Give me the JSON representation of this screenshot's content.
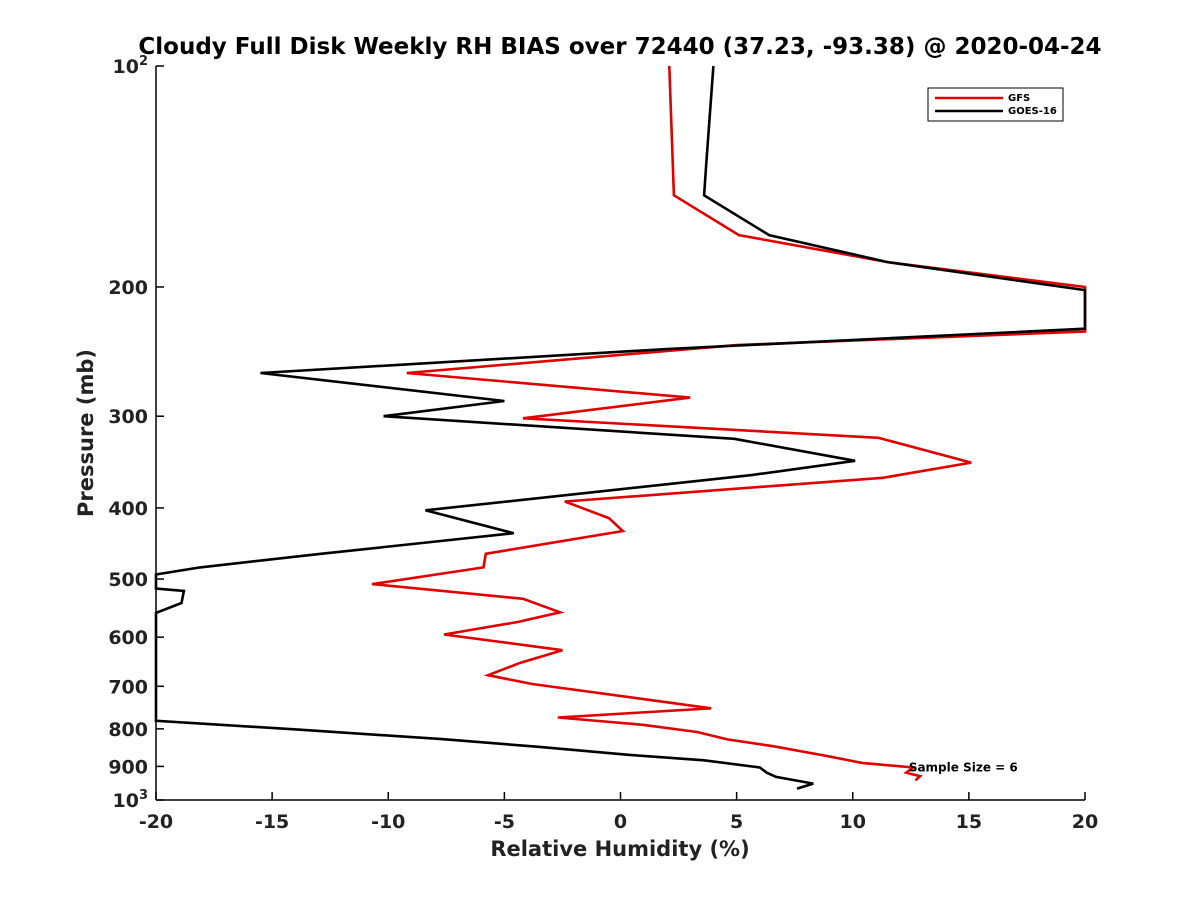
{
  "chart_data": {
    "type": "line",
    "title": "Cloudy Full Disk Weekly RH BIAS over 72440 (37.23, -93.38) @ 2020-04-24",
    "xlabel": "Relative Humidity (%)",
    "ylabel": "Pressure (mb)",
    "xlim": [
      -20,
      20
    ],
    "ylim": [
      100,
      1000
    ],
    "y_scale": "log",
    "y_reversed": true,
    "grid": false,
    "legend_position": "top-right",
    "x_ticks": [
      "-20",
      "-15",
      "-10",
      "-5",
      "0",
      "5",
      "10",
      "15",
      "20"
    ],
    "y_ticks": [
      {
        "value": 100,
        "base": "10",
        "exp": "2"
      },
      {
        "value": 200,
        "label": "200"
      },
      {
        "value": 300,
        "label": "300"
      },
      {
        "value": 400,
        "label": "400"
      },
      {
        "value": 500,
        "label": "500"
      },
      {
        "value": 600,
        "label": "600"
      },
      {
        "value": 700,
        "label": "700"
      },
      {
        "value": 800,
        "label": "800"
      },
      {
        "value": 900,
        "label": "900"
      },
      {
        "value": 1000,
        "base": "10",
        "exp": "3"
      }
    ],
    "series": [
      {
        "name": "GFS",
        "color": "#e00000",
        "points": [
          [
            2.1,
            100
          ],
          [
            2.3,
            150
          ],
          [
            5.1,
            170
          ],
          [
            11.5,
            185
          ],
          [
            20.5,
            200
          ],
          [
            20.5,
            230
          ],
          [
            5.0,
            240
          ],
          [
            -9.2,
            262
          ],
          [
            3.0,
            283
          ],
          [
            -4.2,
            302
          ],
          [
            11.1,
            321
          ],
          [
            15.1,
            347
          ],
          [
            11.3,
            364
          ],
          [
            -2.4,
            392
          ],
          [
            -0.5,
            413
          ],
          [
            0.1,
            430
          ],
          [
            -5.8,
            462
          ],
          [
            -5.9,
            482
          ],
          [
            -10.7,
            508
          ],
          [
            -4.2,
            532
          ],
          [
            -2.6,
            555
          ],
          [
            -4.4,
            572
          ],
          [
            -7.6,
            595
          ],
          [
            -2.5,
            625
          ],
          [
            -4.3,
            650
          ],
          [
            -5.7,
            676
          ],
          [
            -3.8,
            695
          ],
          [
            0.9,
            728
          ],
          [
            3.9,
            750
          ],
          [
            -2.7,
            772
          ],
          [
            1.0,
            790
          ],
          [
            3.3,
            808
          ],
          [
            4.6,
            827
          ],
          [
            6.6,
            845
          ],
          [
            8.8,
            870
          ],
          [
            10.4,
            890
          ],
          [
            12.6,
            903
          ],
          [
            12.3,
            918
          ],
          [
            12.9,
            928
          ],
          [
            12.7,
            940
          ]
        ]
      },
      {
        "name": "GOES-16",
        "color": "#000000",
        "points": [
          [
            4.0,
            100
          ],
          [
            3.7,
            135
          ],
          [
            3.6,
            150
          ],
          [
            6.4,
            170
          ],
          [
            11.5,
            185
          ],
          [
            20.5,
            202
          ],
          [
            20.5,
            228
          ],
          [
            2.0,
            243
          ],
          [
            -15.5,
            262
          ],
          [
            -5.0,
            286
          ],
          [
            -10.2,
            300
          ],
          [
            4.9,
            322
          ],
          [
            10.1,
            345
          ],
          [
            5.6,
            361
          ],
          [
            -8.4,
            403
          ],
          [
            -4.6,
            433
          ],
          [
            -12.9,
            462
          ],
          [
            -18.1,
            482
          ],
          [
            -20.3,
            493
          ],
          [
            -20.3,
            515
          ],
          [
            -18.8,
            519
          ],
          [
            -18.9,
            539
          ],
          [
            -20.3,
            556
          ],
          [
            -20.3,
            780
          ],
          [
            -13.8,
            802
          ],
          [
            -7.7,
            826
          ],
          [
            -3.6,
            846
          ],
          [
            0.4,
            868
          ],
          [
            3.6,
            883
          ],
          [
            6.0,
            903
          ],
          [
            6.3,
            918
          ],
          [
            6.7,
            930
          ],
          [
            8.3,
            950
          ],
          [
            7.6,
            965
          ]
        ]
      }
    ],
    "annotations": [
      {
        "text": "Sample Size = 6",
        "x": 12.5,
        "y": 903
      }
    ]
  }
}
